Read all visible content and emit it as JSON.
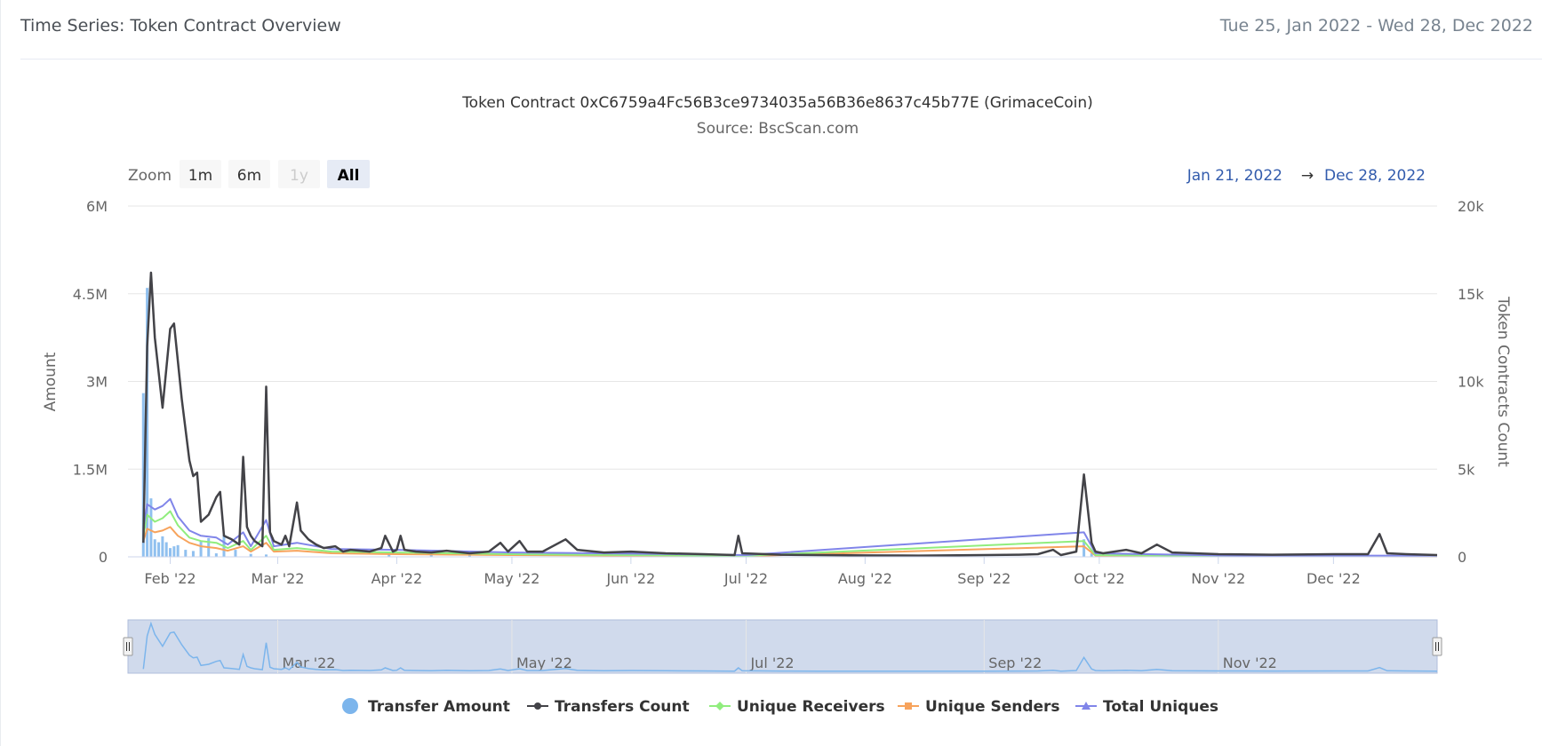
{
  "header": {
    "title": "Time Series: Token Contract Overview",
    "date_range": "Tue 25, Jan 2022 - Wed 28, Dec 2022"
  },
  "colors": {
    "transfer_amount": "#7cb5ec",
    "transfers_count": "#434348",
    "unique_receivers": "#90ed7d",
    "unique_senders": "#f7a35c",
    "total_uniques": "#8085e9",
    "navigator_fill": "#ccd6eb",
    "range_text": "#335cad"
  },
  "chart_data": {
    "type": "line",
    "title": "Token Contract 0xC6759a4Fc56B3ce9734035a56B36e8637c45b77E (GrimaceCoin)",
    "subtitle": "Source: BscScan.com",
    "x_range": [
      "2022-01-21",
      "2022-12-28"
    ],
    "ylabel": "Amount",
    "ylabel_right": "Token Contracts Count",
    "ylim": [
      0,
      6000000
    ],
    "ylim_right": [
      0,
      20000
    ],
    "y_ticks": [
      "0",
      "1.5M",
      "3M",
      "4.5M",
      "6M"
    ],
    "y_ticks_right": [
      "0",
      "5k",
      "10k",
      "15k",
      "20k"
    ],
    "x_ticks": [
      "Feb '22",
      "Mar '22",
      "Apr '22",
      "May '22",
      "Jun '22",
      "Jul '22",
      "Aug '22",
      "Sep '22",
      "Oct '22",
      "Nov '22",
      "Dec '22"
    ],
    "grid": true,
    "legend_position": "bottom-center",
    "range_selector": {
      "label": "Zoom",
      "buttons": [
        "1m",
        "6m",
        "1y",
        "All"
      ],
      "selected": "All",
      "disabled": [
        "1y"
      ],
      "from": "Jan 21, 2022",
      "arrow": "→",
      "to": "Dec 28, 2022"
    },
    "navigator_ticks": [
      "Mar '22",
      "May '22",
      "Jul '22",
      "Sep '22",
      "Nov '22"
    ],
    "series": [
      {
        "name": "Transfer Amount",
        "type": "column",
        "axis": "left",
        "points": [
          [
            "2022-01-25",
            2800000
          ],
          [
            "2022-01-26",
            4600000
          ],
          [
            "2022-01-27",
            1000000
          ],
          [
            "2022-01-28",
            300000
          ],
          [
            "2022-01-29",
            250000
          ],
          [
            "2022-01-30",
            350000
          ],
          [
            "2022-01-31",
            250000
          ],
          [
            "2022-02-01",
            150000
          ],
          [
            "2022-02-02",
            180000
          ],
          [
            "2022-02-03",
            200000
          ],
          [
            "2022-02-05",
            120000
          ],
          [
            "2022-02-07",
            100000
          ],
          [
            "2022-02-09",
            280000
          ],
          [
            "2022-02-11",
            320000
          ],
          [
            "2022-02-13",
            60000
          ],
          [
            "2022-02-15",
            380000
          ],
          [
            "2022-02-18",
            120000
          ],
          [
            "2022-02-22",
            50000
          ],
          [
            "2022-02-26",
            40000
          ],
          [
            "2022-03-30",
            60000
          ],
          [
            "2022-04-10",
            40000
          ],
          [
            "2022-04-20",
            30000
          ],
          [
            "2022-05-31",
            60000
          ],
          [
            "2022-06-29",
            30000
          ],
          [
            "2022-09-27",
            300000
          ],
          [
            "2022-09-29",
            60000
          ],
          [
            "2022-12-10",
            40000
          ]
        ]
      },
      {
        "name": "Transfers Count",
        "type": "line",
        "axis": "right",
        "points": [
          [
            "2022-01-25",
            800
          ],
          [
            "2022-01-26",
            12000
          ],
          [
            "2022-01-27",
            16200
          ],
          [
            "2022-01-28",
            12500
          ],
          [
            "2022-01-30",
            8500
          ],
          [
            "2022-02-01",
            13000
          ],
          [
            "2022-02-02",
            13300
          ],
          [
            "2022-02-04",
            9000
          ],
          [
            "2022-02-06",
            5500
          ],
          [
            "2022-02-07",
            4600
          ],
          [
            "2022-02-08",
            4800
          ],
          [
            "2022-02-09",
            2000
          ],
          [
            "2022-02-11",
            2400
          ],
          [
            "2022-02-13",
            3400
          ],
          [
            "2022-02-14",
            3700
          ],
          [
            "2022-02-15",
            1200
          ],
          [
            "2022-02-17",
            1000
          ],
          [
            "2022-02-19",
            700
          ],
          [
            "2022-02-20",
            5700
          ],
          [
            "2022-02-21",
            1700
          ],
          [
            "2022-02-22",
            1200
          ],
          [
            "2022-02-23",
            900
          ],
          [
            "2022-02-25",
            600
          ],
          [
            "2022-02-26",
            9700
          ],
          [
            "2022-02-27",
            1400
          ],
          [
            "2022-02-28",
            900
          ],
          [
            "2022-03-02",
            700
          ],
          [
            "2022-03-03",
            1200
          ],
          [
            "2022-03-04",
            600
          ],
          [
            "2022-03-06",
            3100
          ],
          [
            "2022-03-07",
            1500
          ],
          [
            "2022-03-09",
            1000
          ],
          [
            "2022-03-11",
            700
          ],
          [
            "2022-03-13",
            500
          ],
          [
            "2022-03-16",
            600
          ],
          [
            "2022-03-18",
            300
          ],
          [
            "2022-03-20",
            400
          ],
          [
            "2022-03-25",
            300
          ],
          [
            "2022-03-28",
            500
          ],
          [
            "2022-03-29",
            1200
          ],
          [
            "2022-03-31",
            300
          ],
          [
            "2022-04-01",
            400
          ],
          [
            "2022-04-02",
            1200
          ],
          [
            "2022-04-03",
            400
          ],
          [
            "2022-04-06",
            300
          ],
          [
            "2022-04-10",
            250
          ],
          [
            "2022-04-14",
            350
          ],
          [
            "2022-04-20",
            200
          ],
          [
            "2022-04-25",
            300
          ],
          [
            "2022-04-28",
            800
          ],
          [
            "2022-04-30",
            300
          ],
          [
            "2022-05-03",
            900
          ],
          [
            "2022-05-05",
            300
          ],
          [
            "2022-05-09",
            300
          ],
          [
            "2022-05-15",
            1000
          ],
          [
            "2022-05-18",
            400
          ],
          [
            "2022-05-25",
            250
          ],
          [
            "2022-06-01",
            300
          ],
          [
            "2022-06-10",
            200
          ],
          [
            "2022-06-20",
            150
          ],
          [
            "2022-06-28",
            100
          ],
          [
            "2022-06-29",
            1200
          ],
          [
            "2022-06-30",
            200
          ],
          [
            "2022-07-10",
            120
          ],
          [
            "2022-07-20",
            100
          ],
          [
            "2022-08-01",
            80
          ],
          [
            "2022-08-15",
            70
          ],
          [
            "2022-09-01",
            100
          ],
          [
            "2022-09-10",
            120
          ],
          [
            "2022-09-15",
            150
          ],
          [
            "2022-09-19",
            400
          ],
          [
            "2022-09-21",
            100
          ],
          [
            "2022-09-25",
            300
          ],
          [
            "2022-09-27",
            4700
          ],
          [
            "2022-09-29",
            800
          ],
          [
            "2022-09-30",
            300
          ],
          [
            "2022-10-02",
            200
          ],
          [
            "2022-10-08",
            400
          ],
          [
            "2022-10-12",
            200
          ],
          [
            "2022-10-16",
            700
          ],
          [
            "2022-10-20",
            250
          ],
          [
            "2022-11-01",
            150
          ],
          [
            "2022-11-15",
            120
          ],
          [
            "2022-12-01",
            150
          ],
          [
            "2022-12-10",
            150
          ],
          [
            "2022-12-13",
            1300
          ],
          [
            "2022-12-15",
            200
          ],
          [
            "2022-12-20",
            150
          ],
          [
            "2022-12-28",
            100
          ]
        ]
      },
      {
        "name": "Unique Receivers",
        "type": "line",
        "axis": "right",
        "points": [
          [
            "2022-01-25",
            1200
          ],
          [
            "2022-01-26",
            2400
          ],
          [
            "2022-01-28",
            2000
          ],
          [
            "2022-01-30",
            2200
          ],
          [
            "2022-02-01",
            2600
          ],
          [
            "2022-02-03",
            1800
          ],
          [
            "2022-02-06",
            1100
          ],
          [
            "2022-02-09",
            900
          ],
          [
            "2022-02-13",
            800
          ],
          [
            "2022-02-16",
            500
          ],
          [
            "2022-02-20",
            900
          ],
          [
            "2022-02-22",
            400
          ],
          [
            "2022-02-26",
            1200
          ],
          [
            "2022-02-28",
            400
          ],
          [
            "2022-03-06",
            500
          ],
          [
            "2022-03-15",
            300
          ],
          [
            "2022-04-01",
            250
          ],
          [
            "2022-05-01",
            150
          ],
          [
            "2022-06-01",
            100
          ],
          [
            "2022-07-01",
            60
          ],
          [
            "2022-09-27",
            900
          ],
          [
            "2022-09-30",
            100
          ],
          [
            "2022-11-01",
            50
          ],
          [
            "2022-12-28",
            40
          ]
        ]
      },
      {
        "name": "Unique Senders",
        "type": "line",
        "axis": "right",
        "points": [
          [
            "2022-01-25",
            900
          ],
          [
            "2022-01-26",
            1600
          ],
          [
            "2022-01-28",
            1400
          ],
          [
            "2022-01-30",
            1500
          ],
          [
            "2022-02-01",
            1700
          ],
          [
            "2022-02-03",
            1200
          ],
          [
            "2022-02-06",
            800
          ],
          [
            "2022-02-09",
            600
          ],
          [
            "2022-02-13",
            500
          ],
          [
            "2022-02-16",
            350
          ],
          [
            "2022-02-20",
            600
          ],
          [
            "2022-02-22",
            300
          ],
          [
            "2022-02-26",
            800
          ],
          [
            "2022-02-28",
            300
          ],
          [
            "2022-03-06",
            350
          ],
          [
            "2022-03-15",
            200
          ],
          [
            "2022-04-01",
            150
          ],
          [
            "2022-05-01",
            100
          ],
          [
            "2022-06-01",
            70
          ],
          [
            "2022-07-01",
            40
          ],
          [
            "2022-09-27",
            600
          ],
          [
            "2022-09-30",
            70
          ],
          [
            "2022-11-01",
            30
          ],
          [
            "2022-12-28",
            20
          ]
        ]
      },
      {
        "name": "Total Uniques",
        "type": "line",
        "axis": "right",
        "points": [
          [
            "2022-01-25",
            1600
          ],
          [
            "2022-01-26",
            3000
          ],
          [
            "2022-01-28",
            2700
          ],
          [
            "2022-01-30",
            2900
          ],
          [
            "2022-02-01",
            3300
          ],
          [
            "2022-02-03",
            2300
          ],
          [
            "2022-02-06",
            1500
          ],
          [
            "2022-02-09",
            1200
          ],
          [
            "2022-02-13",
            1100
          ],
          [
            "2022-02-16",
            700
          ],
          [
            "2022-02-20",
            1400
          ],
          [
            "2022-02-22",
            600
          ],
          [
            "2022-02-26",
            2100
          ],
          [
            "2022-02-28",
            600
          ],
          [
            "2022-03-06",
            800
          ],
          [
            "2022-03-15",
            450
          ],
          [
            "2022-04-01",
            400
          ],
          [
            "2022-05-01",
            250
          ],
          [
            "2022-06-01",
            180
          ],
          [
            "2022-07-01",
            100
          ],
          [
            "2022-09-27",
            1400
          ],
          [
            "2022-09-30",
            200
          ],
          [
            "2022-11-01",
            80
          ],
          [
            "2022-12-28",
            60
          ]
        ]
      }
    ]
  }
}
